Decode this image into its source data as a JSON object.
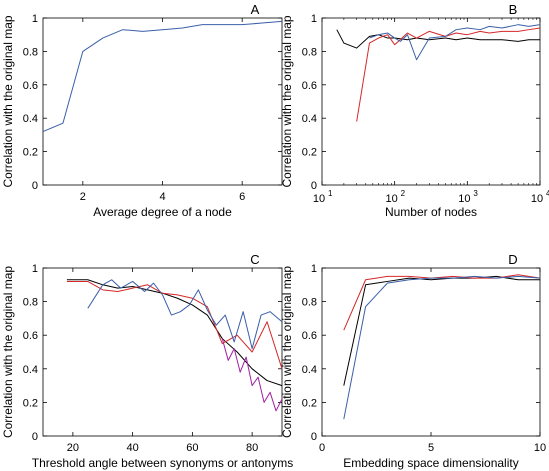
{
  "chart_data": [
    {
      "panel": "A",
      "type": "line",
      "xlabel": "Average degree of a node",
      "ylabel": "Correlation with the original map",
      "xlim": [
        1,
        7
      ],
      "ylim": [
        0,
        1
      ],
      "x_scale": "linear",
      "xticks": [
        2,
        4,
        6
      ],
      "xtick_labels": [
        "2",
        "4",
        "6"
      ],
      "yticks": [
        0,
        0.2,
        0.4,
        0.6,
        0.8,
        1
      ],
      "ytick_labels": [
        "0",
        "0.2",
        "0.4",
        "0.6",
        "0.8",
        "1"
      ],
      "series": [
        {
          "color": "#3a5fa8",
          "x": [
            1,
            1.5,
            2,
            2.5,
            3,
            3.5,
            4,
            4.5,
            5,
            5.5,
            6,
            6.5,
            7
          ],
          "y": [
            0.32,
            0.37,
            0.8,
            0.88,
            0.93,
            0.92,
            0.93,
            0.94,
            0.96,
            0.96,
            0.96,
            0.97,
            0.98
          ]
        }
      ]
    },
    {
      "panel": "B",
      "type": "line",
      "xlabel": "Number of nodes",
      "ylabel": "Correlation with the original map",
      "xlim": [
        10,
        10000
      ],
      "ylim": [
        0,
        1
      ],
      "x_scale": "log",
      "xticks": [
        10,
        100,
        1000,
        10000
      ],
      "xtick_base": [
        "10",
        "10",
        "10",
        "10"
      ],
      "xtick_exp": [
        "1",
        "2",
        "3",
        "4"
      ],
      "yticks": [
        0,
        0.2,
        0.4,
        0.6,
        0.8,
        1
      ],
      "ytick_labels": [
        "0",
        "0.2",
        "0.4",
        "0.6",
        "0.8",
        "1"
      ],
      "series": [
        {
          "color": "#000000",
          "x": [
            16,
            20,
            30,
            45,
            60,
            80,
            100,
            150,
            200,
            300,
            500,
            700,
            1000,
            1500,
            2000,
            3000,
            5000,
            7000,
            10000
          ],
          "y": [
            0.93,
            0.85,
            0.82,
            0.89,
            0.9,
            0.88,
            0.88,
            0.87,
            0.88,
            0.87,
            0.88,
            0.87,
            0.88,
            0.87,
            0.87,
            0.87,
            0.86,
            0.87,
            0.87
          ]
        },
        {
          "color": "#d62728",
          "x": [
            30,
            45,
            60,
            80,
            100,
            150,
            200,
            300,
            500,
            700,
            1000,
            1500,
            2000,
            3000,
            5000,
            7000,
            10000
          ],
          "y": [
            0.38,
            0.85,
            0.88,
            0.9,
            0.84,
            0.91,
            0.88,
            0.92,
            0.89,
            0.91,
            0.9,
            0.92,
            0.91,
            0.92,
            0.92,
            0.93,
            0.94
          ]
        },
        {
          "color": "#3a5fa8",
          "x": [
            45,
            60,
            80,
            100,
            120,
            150,
            200,
            300,
            500,
            700,
            1000,
            1500,
            2000,
            3000,
            5000,
            7000,
            10000
          ],
          "y": [
            0.88,
            0.9,
            0.91,
            0.88,
            0.86,
            0.9,
            0.75,
            0.88,
            0.89,
            0.93,
            0.94,
            0.93,
            0.95,
            0.94,
            0.96,
            0.95,
            0.96
          ]
        }
      ]
    },
    {
      "panel": "C",
      "type": "line",
      "xlabel": "Threshold angle between synonyms or antonyms",
      "ylabel": "Correlation with the original map",
      "xlim": [
        10,
        90
      ],
      "ylim": [
        0,
        1
      ],
      "x_scale": "linear",
      "xticks": [
        20,
        40,
        60,
        80
      ],
      "xtick_labels": [
        "20",
        "40",
        "60",
        "80"
      ],
      "yticks": [
        0,
        0.2,
        0.4,
        0.6,
        0.8,
        1
      ],
      "ytick_labels": [
        "0",
        "0.2",
        "0.4",
        "0.6",
        "0.8",
        "1"
      ],
      "series": [
        {
          "color": "#000000",
          "x": [
            18,
            25,
            30,
            35,
            40,
            45,
            50,
            55,
            60,
            65,
            70,
            75,
            80,
            85,
            90
          ],
          "y": [
            0.93,
            0.93,
            0.9,
            0.88,
            0.89,
            0.87,
            0.85,
            0.82,
            0.78,
            0.72,
            0.58,
            0.5,
            0.4,
            0.33,
            0.3
          ]
        },
        {
          "color": "#d62728",
          "x": [
            18,
            25,
            30,
            35,
            40,
            45,
            50,
            55,
            60,
            65,
            70,
            75,
            80,
            85,
            90
          ],
          "y": [
            0.92,
            0.92,
            0.87,
            0.86,
            0.88,
            0.9,
            0.85,
            0.84,
            0.82,
            0.77,
            0.55,
            0.6,
            0.5,
            0.68,
            0.4
          ]
        },
        {
          "color": "#3a5fa8",
          "x": [
            25,
            30,
            33,
            36,
            40,
            44,
            47,
            50,
            53,
            56,
            59,
            62,
            65,
            68,
            71,
            74,
            77,
            80,
            83,
            86,
            90
          ],
          "y": [
            0.76,
            0.9,
            0.93,
            0.88,
            0.92,
            0.86,
            0.91,
            0.84,
            0.72,
            0.74,
            0.78,
            0.87,
            0.75,
            0.66,
            0.72,
            0.56,
            0.74,
            0.52,
            0.72,
            0.74,
            0.68
          ]
        },
        {
          "color": "#a020a0",
          "x": [
            70,
            72,
            74,
            76,
            78,
            80,
            82,
            84,
            86,
            88,
            90
          ],
          "y": [
            0.58,
            0.45,
            0.52,
            0.38,
            0.47,
            0.3,
            0.35,
            0.2,
            0.26,
            0.15,
            0.22
          ]
        }
      ]
    },
    {
      "panel": "D",
      "type": "line",
      "xlabel": "Embedding space dimensionality",
      "ylabel": "Correlation with the original map",
      "xlim": [
        0,
        10
      ],
      "ylim": [
        0,
        1
      ],
      "x_scale": "linear",
      "xticks": [
        0,
        5,
        10
      ],
      "xtick_labels": [
        "0",
        "5",
        "10"
      ],
      "yticks": [
        0,
        0.2,
        0.4,
        0.6,
        0.8,
        1
      ],
      "ytick_labels": [
        "0",
        "0.2",
        "0.4",
        "0.6",
        "0.8",
        "1"
      ],
      "series": [
        {
          "color": "#000000",
          "x": [
            1,
            2,
            3,
            4,
            5,
            6,
            7,
            8,
            9,
            10
          ],
          "y": [
            0.3,
            0.9,
            0.92,
            0.94,
            0.93,
            0.94,
            0.94,
            0.95,
            0.93,
            0.93
          ]
        },
        {
          "color": "#d62728",
          "x": [
            1,
            2,
            3,
            4,
            5,
            6,
            7,
            8,
            9,
            10
          ],
          "y": [
            0.63,
            0.93,
            0.95,
            0.95,
            0.94,
            0.95,
            0.94,
            0.94,
            0.96,
            0.94
          ]
        },
        {
          "color": "#3a5fa8",
          "x": [
            1,
            2,
            3,
            4,
            5,
            6,
            7,
            8,
            9,
            10
          ],
          "y": [
            0.1,
            0.77,
            0.91,
            0.93,
            0.94,
            0.94,
            0.95,
            0.94,
            0.95,
            0.94
          ]
        }
      ]
    }
  ]
}
